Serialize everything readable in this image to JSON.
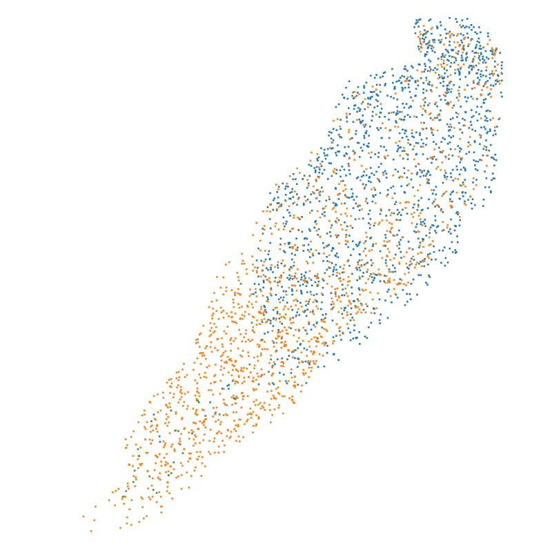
{
  "chart_data": {
    "type": "scatter",
    "title": "",
    "xlabel": "",
    "ylabel": "",
    "grid": false,
    "legend": "none",
    "axes_visible": false,
    "xlim": [
      0,
      100
    ],
    "ylim": [
      0,
      100
    ],
    "marker": "square",
    "series": [
      {
        "color": "#1f77b4",
        "point_count": 1500,
        "density_profile": [
          {
            "y": 98,
            "x_min": 77,
            "x_max": 88,
            "weight": 0.35
          },
          {
            "y": 94,
            "x_min": 78,
            "x_max": 94,
            "weight": 0.7
          },
          {
            "y": 90,
            "x_min": 78,
            "x_max": 95,
            "weight": 0.8
          },
          {
            "y": 86,
            "x_min": 63,
            "x_max": 95,
            "weight": 1.0
          },
          {
            "y": 82,
            "x_min": 62,
            "x_max": 95,
            "weight": 1.0
          },
          {
            "y": 78,
            "x_min": 61,
            "x_max": 95,
            "weight": 1.0
          },
          {
            "y": 74,
            "x_min": 59,
            "x_max": 94,
            "weight": 1.0
          },
          {
            "y": 70,
            "x_min": 55,
            "x_max": 94,
            "weight": 1.0
          },
          {
            "y": 66,
            "x_min": 49,
            "x_max": 93,
            "weight": 1.0
          },
          {
            "y": 62,
            "x_min": 47,
            "x_max": 92,
            "weight": 0.95
          },
          {
            "y": 58,
            "x_min": 47,
            "x_max": 88,
            "weight": 0.9
          },
          {
            "y": 54,
            "x_min": 46,
            "x_max": 86,
            "weight": 0.85
          },
          {
            "y": 50,
            "x_min": 46,
            "x_max": 82,
            "weight": 0.8
          },
          {
            "y": 46,
            "x_min": 45,
            "x_max": 78,
            "weight": 0.65
          },
          {
            "y": 42,
            "x_min": 47,
            "x_max": 72,
            "weight": 0.45
          },
          {
            "y": 38,
            "x_min": 48,
            "x_max": 69,
            "weight": 0.3
          },
          {
            "y": 34,
            "x_min": 50,
            "x_max": 62,
            "weight": 0.15
          },
          {
            "y": 30,
            "x_min": 40,
            "x_max": 56,
            "weight": 0.07
          },
          {
            "y": 26,
            "x_min": 28,
            "x_max": 46,
            "weight": 0.04
          },
          {
            "y": 20,
            "x_min": 18,
            "x_max": 36,
            "weight": 0.02
          },
          {
            "y": 10,
            "x_min": 6,
            "x_max": 26,
            "weight": 0.01
          }
        ]
      },
      {
        "color": "#ff7f0e",
        "point_count": 1450,
        "density_profile": [
          {
            "y": 97,
            "x_min": 77,
            "x_max": 88,
            "weight": 0.15
          },
          {
            "y": 93,
            "x_min": 78,
            "x_max": 94,
            "weight": 0.25
          },
          {
            "y": 88,
            "x_min": 78,
            "x_max": 95,
            "weight": 0.3
          },
          {
            "y": 84,
            "x_min": 63,
            "x_max": 95,
            "weight": 0.3
          },
          {
            "y": 80,
            "x_min": 62,
            "x_max": 95,
            "weight": 0.3
          },
          {
            "y": 74,
            "x_min": 58,
            "x_max": 93,
            "weight": 0.35
          },
          {
            "y": 68,
            "x_min": 50,
            "x_max": 92,
            "weight": 0.45
          },
          {
            "y": 62,
            "x_min": 47,
            "x_max": 88,
            "weight": 0.55
          },
          {
            "y": 56,
            "x_min": 42,
            "x_max": 83,
            "weight": 0.7
          },
          {
            "y": 50,
            "x_min": 38,
            "x_max": 78,
            "weight": 0.85
          },
          {
            "y": 45,
            "x_min": 37,
            "x_max": 72,
            "weight": 0.95
          },
          {
            "y": 40,
            "x_min": 35,
            "x_max": 64,
            "weight": 1.0
          },
          {
            "y": 36,
            "x_min": 33,
            "x_max": 60,
            "weight": 1.0
          },
          {
            "y": 32,
            "x_min": 30,
            "x_max": 57,
            "weight": 1.0
          },
          {
            "y": 28,
            "x_min": 26,
            "x_max": 55,
            "weight": 0.95
          },
          {
            "y": 24,
            "x_min": 22,
            "x_max": 52,
            "weight": 0.85
          },
          {
            "y": 20,
            "x_min": 20,
            "x_max": 44,
            "weight": 0.7
          },
          {
            "y": 16,
            "x_min": 20,
            "x_max": 38,
            "weight": 0.5
          },
          {
            "y": 12,
            "x_min": 21,
            "x_max": 35,
            "weight": 0.3
          },
          {
            "y": 8,
            "x_min": 13,
            "x_max": 30,
            "weight": 0.15
          },
          {
            "y": 4,
            "x_min": 8,
            "x_max": 25,
            "weight": 0.1
          },
          {
            "y": 1.5,
            "x_min": 4,
            "x_max": 20,
            "weight": 0.08
          }
        ]
      },
      {
        "color": "#2ca02c",
        "point_count": 32,
        "density_profile": [
          {
            "y": 52,
            "x_min": 44,
            "x_max": 62,
            "weight": 0.6
          },
          {
            "y": 40,
            "x_min": 40,
            "x_max": 58,
            "weight": 0.6
          },
          {
            "y": 30,
            "x_min": 36,
            "x_max": 52,
            "weight": 0.8
          },
          {
            "y": 20,
            "x_min": 22,
            "x_max": 34,
            "weight": 1.0
          },
          {
            "y": 12,
            "x_min": 20,
            "x_max": 30,
            "weight": 1.0
          },
          {
            "y": 5,
            "x_min": 8,
            "x_max": 26,
            "weight": 1.0
          }
        ]
      }
    ]
  }
}
